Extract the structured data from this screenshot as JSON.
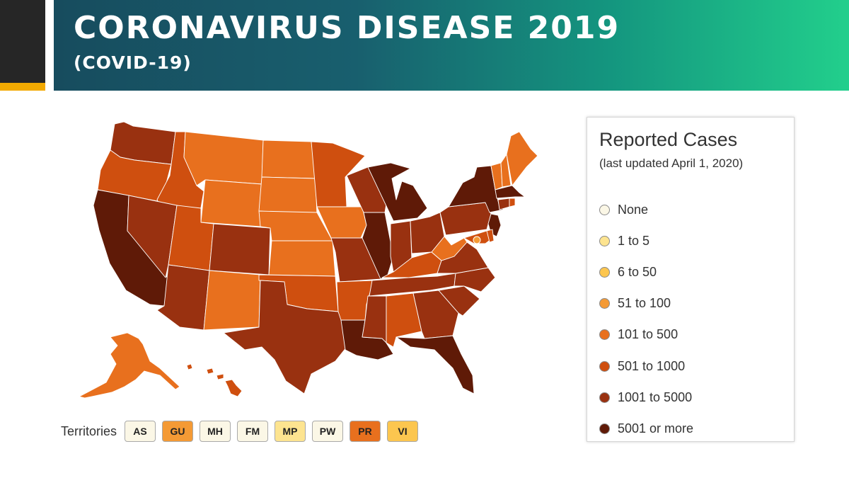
{
  "header": {
    "title": "CORONAVIRUS DISEASE 2019",
    "subtitle": "(COVID-19)",
    "accent_color": "#f2a900"
  },
  "legend": {
    "title": "Reported Cases",
    "subtitle": "(last updated April 1, 2020)",
    "items": [
      {
        "label": "None",
        "color": "#fbf7e6"
      },
      {
        "label": "1 to 5",
        "color": "#fde490"
      },
      {
        "label": "6 to 50",
        "color": "#fcc64f"
      },
      {
        "label": "51 to 100",
        "color": "#f49a35"
      },
      {
        "label": "101 to 500",
        "color": "#e8701e"
      },
      {
        "label": "501 to 1000",
        "color": "#cf4f0f"
      },
      {
        "label": "1001 to 5000",
        "color": "#993110"
      },
      {
        "label": "5001 or more",
        "color": "#5f1a07"
      }
    ]
  },
  "territories": {
    "label": "Territories",
    "items": [
      {
        "code": "AS",
        "color": "#fbf7e6"
      },
      {
        "code": "GU",
        "color": "#f49a35"
      },
      {
        "code": "MH",
        "color": "#fbf7e6"
      },
      {
        "code": "FM",
        "color": "#fbf7e6"
      },
      {
        "code": "MP",
        "color": "#fde490"
      },
      {
        "code": "PW",
        "color": "#fbf7e6"
      },
      {
        "code": "PR",
        "color": "#e8701e"
      },
      {
        "code": "VI",
        "color": "#fcc64f"
      }
    ]
  }
}
